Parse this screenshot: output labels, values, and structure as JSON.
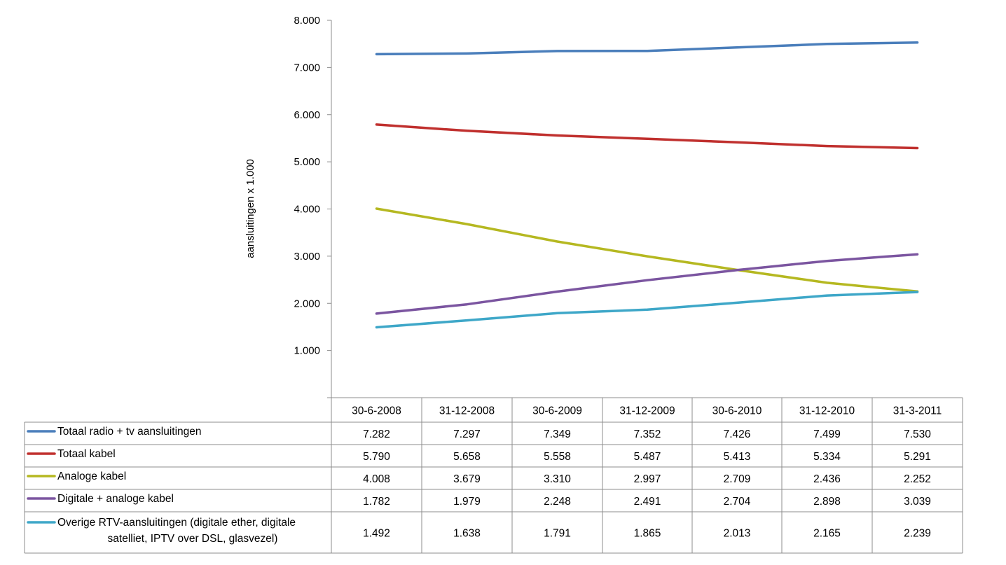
{
  "chart_data": {
    "type": "line",
    "title": "",
    "xlabel": "",
    "ylabel": "aansluitingen x 1.000",
    "ylim": [
      0,
      8000
    ],
    "yticks": [
      "1.000",
      "2.000",
      "3.000",
      "4.000",
      "5.000",
      "6.000",
      "7.000",
      "8.000"
    ],
    "grid": false,
    "legend": "data-table-bottom",
    "categories": [
      "30-6-2008",
      "31-12-2008",
      "30-6-2009",
      "31-12-2009",
      "30-6-2010",
      "31-12-2010",
      "31-3-2011"
    ],
    "series": [
      {
        "name": "Totaal radio + tv aansluitingen",
        "name_lines": [
          "Totaal radio + tv aansluitingen"
        ],
        "color": "#4a7ebb",
        "values": [
          7282,
          7297,
          7349,
          7352,
          7426,
          7499,
          7530
        ],
        "labels": [
          "7.282",
          "7.297",
          "7.349",
          "7.352",
          "7.426",
          "7.499",
          "7.530"
        ]
      },
      {
        "name": "Totaal kabel",
        "name_lines": [
          "Totaal kabel"
        ],
        "color": "#c0302e",
        "values": [
          5790,
          5658,
          5558,
          5487,
          5413,
          5334,
          5291
        ],
        "labels": [
          "5.790",
          "5.658",
          "5.558",
          "5.487",
          "5.413",
          "5.334",
          "5.291"
        ]
      },
      {
        "name": "Analoge kabel",
        "name_lines": [
          "Analoge kabel"
        ],
        "color": "#b5b821",
        "values": [
          4008,
          3679,
          3310,
          2997,
          2709,
          2436,
          2252
        ],
        "labels": [
          "4.008",
          "3.679",
          "3.310",
          "2.997",
          "2.709",
          "2.436",
          "2.252"
        ]
      },
      {
        "name": "Digitale + analoge kabel",
        "name_lines": [
          "Digitale + analoge kabel"
        ],
        "color": "#7b55a0",
        "values": [
          1782,
          1979,
          2248,
          2491,
          2704,
          2898,
          3039
        ],
        "labels": [
          "1.782",
          "1.979",
          "2.248",
          "2.491",
          "2.704",
          "2.898",
          "3.039"
        ]
      },
      {
        "name": "Overige RTV-aansluitingen (digitale ether, digitale satelliet, IPTV over DSL, glasvezel)",
        "name_lines": [
          "Overige RTV-aansluitingen (digitale ether, digitale",
          "satelliet, IPTV over DSL, glasvezel)"
        ],
        "color": "#3ea7c8",
        "values": [
          1492,
          1638,
          1791,
          1865,
          2013,
          2165,
          2239
        ],
        "labels": [
          "1.492",
          "1.638",
          "1.791",
          "1.865",
          "2.013",
          "2.165",
          "2.239"
        ]
      }
    ]
  }
}
